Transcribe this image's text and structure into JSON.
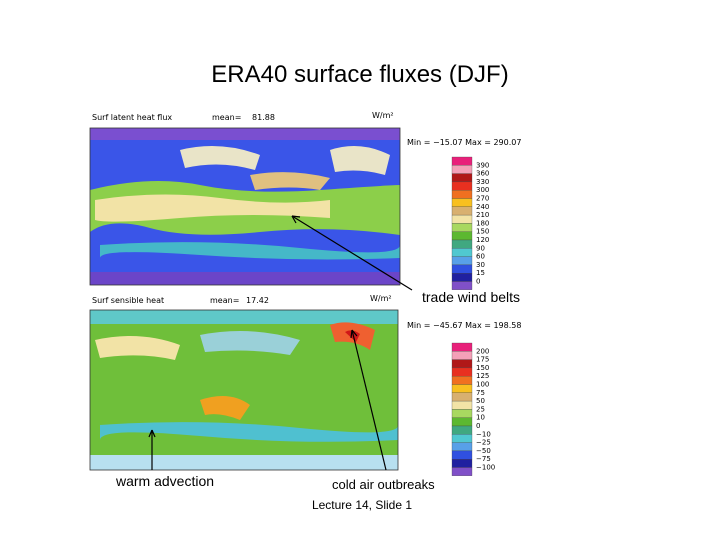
{
  "title": "ERA40 surface fluxes (DJF)",
  "panels": [
    {
      "label": "Surf latent heat flux",
      "mean_label": "mean=",
      "mean": "81.88",
      "units": "W/m²",
      "range": "Min = −15.07 Max = 290.07",
      "levels": [
        "390",
        "360",
        "330",
        "300",
        "270",
        "240",
        "210",
        "180",
        "150",
        "120",
        "90",
        "60",
        "30",
        "15",
        "0"
      ]
    },
    {
      "label": "Surf sensible heat",
      "mean_label": "mean=",
      "mean": "17.42",
      "units": "W/m²",
      "range": "Min = −45.67 Max = 198.58",
      "levels": [
        "200",
        "175",
        "150",
        "125",
        "100",
        "75",
        "50",
        "25",
        "10",
        "0",
        "−10",
        "−25",
        "−50",
        "−75",
        "−100"
      ]
    }
  ],
  "annotations": [
    "trade wind belts",
    "warm advection",
    "cold air outbreaks"
  ],
  "footer": "Lecture 14, Slide 1"
}
